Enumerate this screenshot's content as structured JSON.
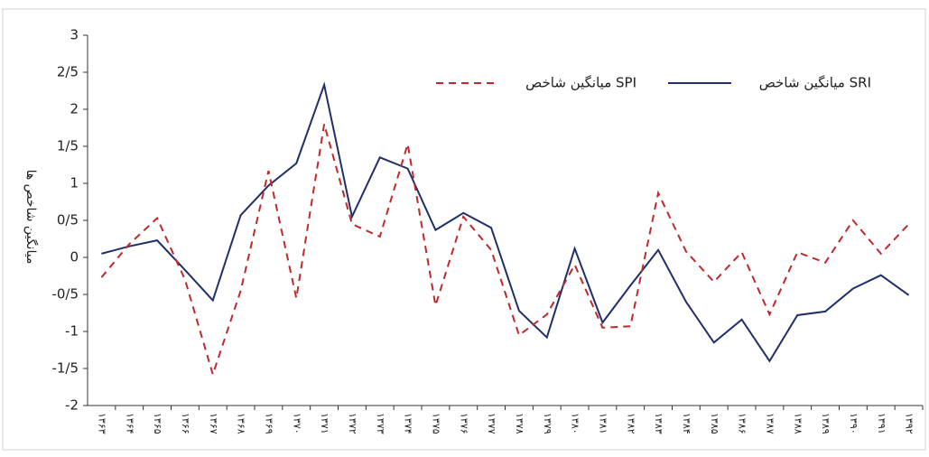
{
  "chart_data": {
    "type": "line",
    "y_label": "میانگین شاخص ها",
    "categories": [
      "۱۳۶۳",
      "۱۳۶۴",
      "۱۳۶۵",
      "۱۳۶۶",
      "۱۳۶۷",
      "۱۳۶۸",
      "۱۳۶۹",
      "۱۳۷۰",
      "۱۳۷۱",
      "۱۳۷۲",
      "۱۳۷۳",
      "۱۳۷۴",
      "۱۳۷۵",
      "۱۳۷۶",
      "۱۳۷۷",
      "۱۳۷۸",
      "۱۳۷۹",
      "۱۳۸۰",
      "۱۳۸۱",
      "۱۳۸۲",
      "۱۳۸۳",
      "۱۳۸۴",
      "۱۳۸۵",
      "۱۳۸۶",
      "۱۳۸۷",
      "۱۳۸۸",
      "۱۳۸۹",
      "۱۳۹۰",
      "۱۳۹۱",
      "۱۳۹۲"
    ],
    "series": [
      {
        "name": "میانگین شاخص SRI",
        "color": "#1f2f6b",
        "dash": false,
        "values": [
          0.05,
          0.15,
          0.23,
          -0.17,
          -0.58,
          0.57,
          0.97,
          1.27,
          2.33,
          0.55,
          1.35,
          1.2,
          0.37,
          0.6,
          0.4,
          -0.72,
          -1.08,
          0.12,
          -0.88,
          -0.38,
          0.1,
          -0.6,
          -1.15,
          -0.84,
          -1.4,
          -0.78,
          -0.73,
          -0.42,
          -0.24,
          -0.51
        ]
      },
      {
        "name": "میانگین شاخص SPI",
        "color": "#c0282a",
        "dash": true,
        "values": [
          -0.27,
          0.18,
          0.53,
          -0.3,
          -1.58,
          -0.45,
          1.17,
          -0.55,
          1.8,
          0.45,
          0.28,
          1.53,
          -0.65,
          0.55,
          0.1,
          -1.05,
          -0.77,
          -0.1,
          -0.95,
          -0.93,
          0.87,
          0.08,
          -0.33,
          0.07,
          -0.77,
          0.07,
          -0.07,
          0.5,
          0.05,
          0.45
        ]
      }
    ],
    "ylim": [
      -2,
      3
    ],
    "yticks": [
      -2,
      {
        "value": -1.5,
        "label": "-1/5"
      },
      -1,
      {
        "value": -0.5,
        "label": "-0/5"
      },
      0,
      {
        "value": 0.5,
        "label": "0/5"
      },
      1,
      {
        "value": 1.5,
        "label": "1/5"
      },
      2,
      {
        "value": 2.5,
        "label": "2/5"
      },
      3
    ],
    "grid": false
  }
}
